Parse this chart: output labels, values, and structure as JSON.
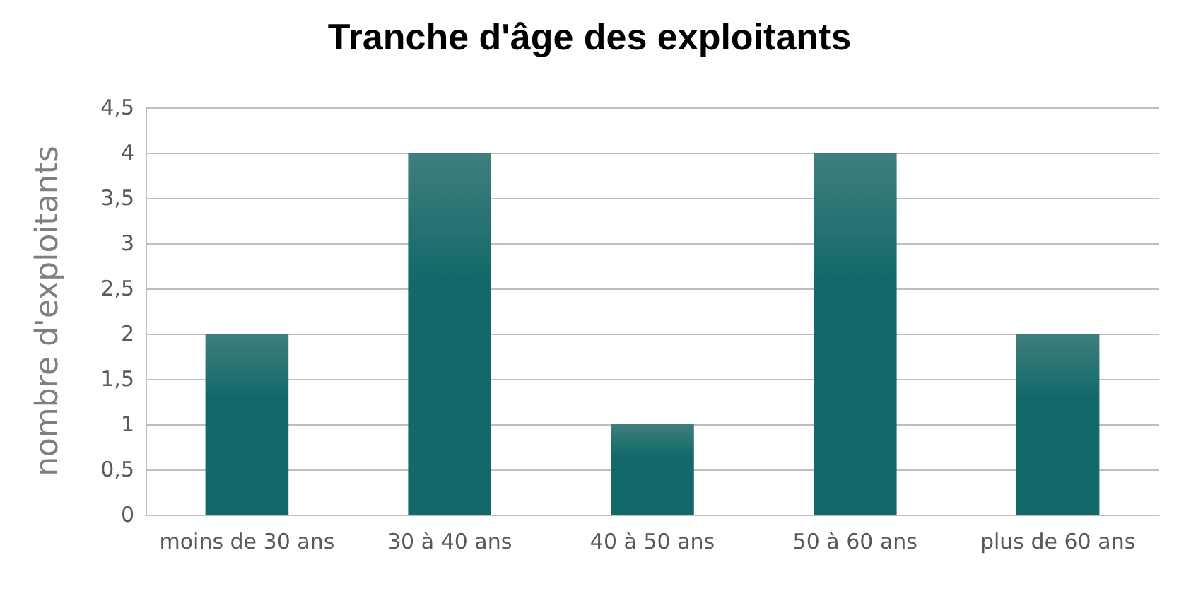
{
  "chart_data": {
    "type": "bar",
    "title": "Tranche d'âge des exploitants",
    "ylabel": "nombre d'exploitants",
    "categories": [
      "moins de 30 ans",
      "30 à 40 ans",
      "40 à 50 ans",
      "50 à 60 ans",
      "plus de 60 ans"
    ],
    "values": [
      2,
      4,
      1,
      4,
      2
    ],
    "color": "#13696a",
    "ylim": [
      0,
      4.5
    ],
    "yticks": [
      0,
      {
        "value": 0.5,
        "label": "0,5"
      },
      1,
      {
        "value": 1.5,
        "label": "1,5"
      },
      2,
      {
        "value": 2.5,
        "label": "2,5"
      },
      3,
      {
        "value": 3.5,
        "label": "3,5"
      },
      4,
      {
        "value": 4.5,
        "label": "4,5"
      }
    ],
    "grid": "y"
  }
}
